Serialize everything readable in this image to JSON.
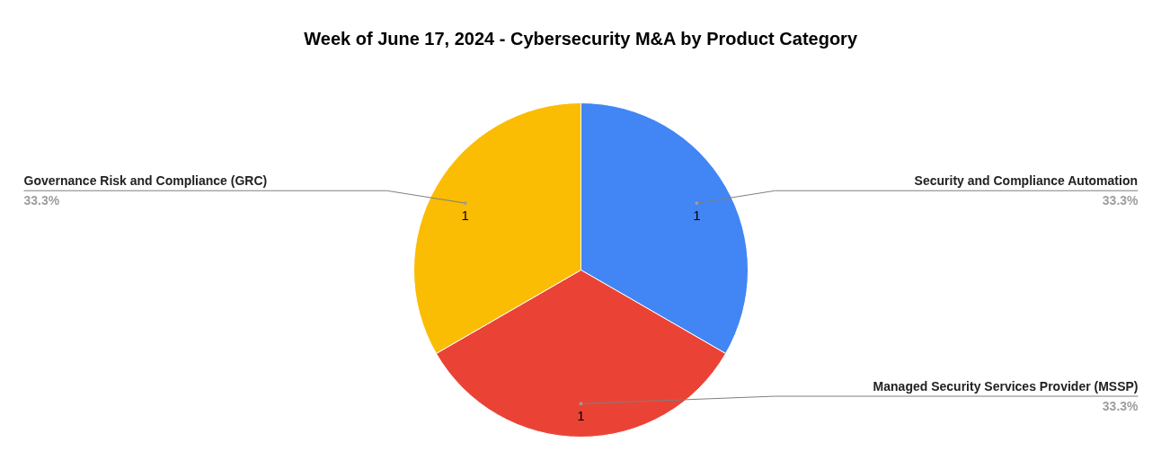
{
  "chart_data": {
    "type": "pie",
    "title": "Week of June 17, 2024 - Cybersecurity M&A by Product Category",
    "categories": [
      "Security and Compliance Automation",
      "Managed Security Services Provider (MSSP)",
      "Governance Risk and Compliance (GRC)"
    ],
    "values": [
      1,
      1,
      1
    ],
    "colors": [
      "#4285f4",
      "#ea4335",
      "#fbbc04"
    ],
    "value_labels": [
      "1",
      "1",
      "1"
    ],
    "annotations": [
      "33.3%",
      "33.3%",
      "33.3%"
    ]
  }
}
